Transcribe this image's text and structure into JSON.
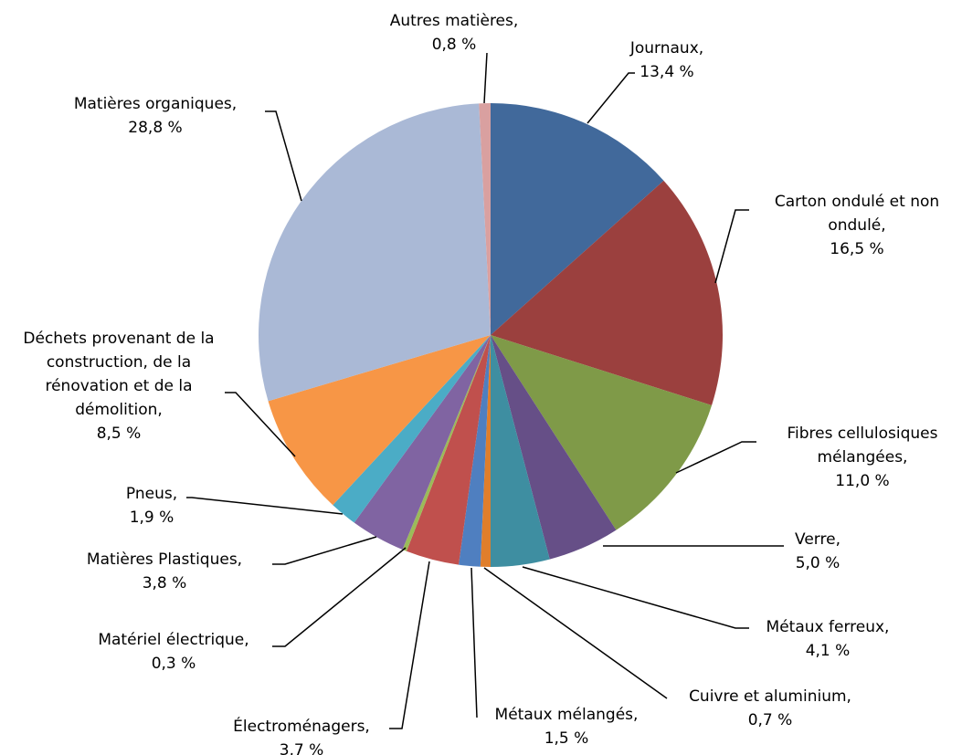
{
  "chart_data": {
    "type": "pie",
    "categories": [
      "Journaux,",
      "Carton ondulé et non ondulé,",
      "Fibres cellulosiques mélangées,",
      "Verre,",
      "Métaux ferreux,",
      "Cuivre et aluminium,",
      "Métaux mélangés,",
      "Électroménagers,",
      "Matériel électrique,",
      "Matières Plastiques,",
      "Pneus,",
      "Déchets provenant de la construction, de la rénovation et de la démolition,",
      "Matières organiques,",
      "Autres matières,"
    ],
    "values": [
      13.4,
      16.5,
      11.0,
      5.0,
      4.1,
      0.7,
      1.5,
      3.7,
      0.3,
      3.8,
      1.9,
      8.5,
      28.8,
      0.8
    ],
    "value_labels": [
      "13,4 %",
      "16,5 %",
      "11,0 %",
      "5,0 %",
      "4,1 %",
      "0,7 %",
      "1,5 %",
      "3,7 %",
      "0,3 %",
      "3,8 %",
      "1,9 %",
      "8,5 %",
      "28,8 %",
      "0,8 %"
    ],
    "colors": [
      "#41699b",
      "#9b403e",
      "#7f9a48",
      "#664f87",
      "#3e8ea1",
      "#e07e2b",
      "#4f7fc0",
      "#c0504d",
      "#9bbb59",
      "#8064a2",
      "#4bacc6",
      "#f79646",
      "#aab9d6",
      "#d9a0a0"
    ]
  }
}
